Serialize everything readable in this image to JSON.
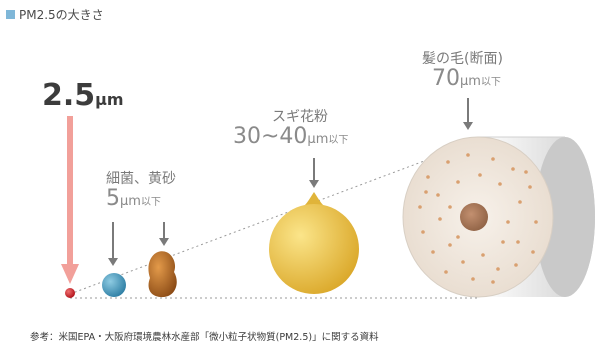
{
  "title": "PM2.5の大きさ",
  "pm25": {
    "value": "2.5",
    "unit": "μm"
  },
  "bacteria": {
    "name": "細菌、黄砂",
    "value": "5",
    "unit": "μm",
    "suffix": "以下"
  },
  "pollen": {
    "name": "スギ花粉",
    "value": "30~40",
    "unit": "μm",
    "suffix": "以下"
  },
  "hair": {
    "name": "髪の毛(断面)",
    "value": "70",
    "unit": "μm",
    "suffix": "以下"
  },
  "footer": "参考：米国EPA・大阪府環境農林水産部「微小粒子状物質(PM2.5)」に関する資料",
  "colors": {
    "pm25": "#c8202a",
    "bacteria": "#4a9ec0",
    "sand": "#b8651f",
    "pollen": "#f2c443",
    "hair": "#eee4da",
    "hair_core": "#a67856",
    "arrow_pink": "#f2a09a",
    "arrow_gray": "#7a7a7a"
  }
}
